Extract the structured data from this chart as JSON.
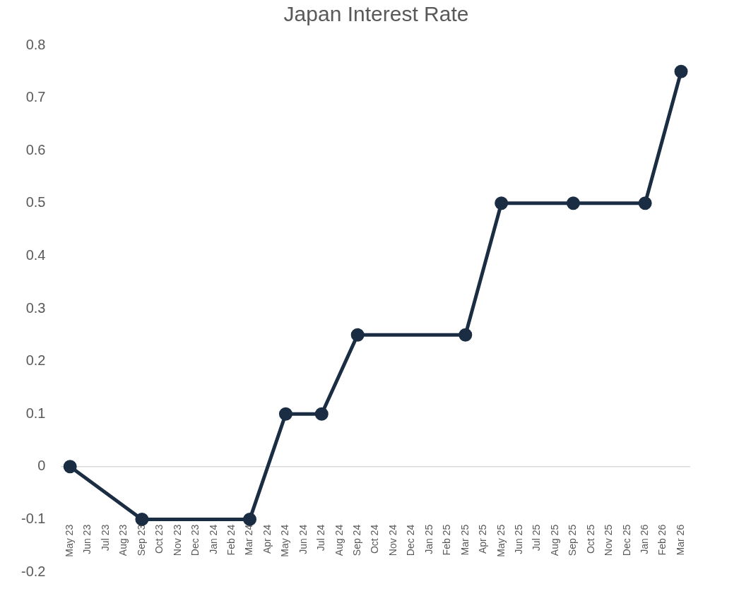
{
  "chart_data": {
    "type": "line",
    "title": "Japan Interest Rate",
    "categories": [
      "May 23",
      "Jun 23",
      "Jul 23",
      "Aug 23",
      "Sep 23",
      "Oct 23",
      "Nov 23",
      "Dec 23",
      "Jan 24",
      "Feb 24",
      "Mar 24",
      "Apr 24",
      "May 24",
      "Jun 24",
      "Jul 24",
      "Aug 24",
      "Sep 24",
      "Oct 24",
      "Nov 24",
      "Dec 24",
      "Jan 25",
      "Feb 25",
      "Mar 25",
      "Apr 25",
      "May 25",
      "Jun 25",
      "Jul 25",
      "Aug 25",
      "Sep 25",
      "Oct 25",
      "Nov 25",
      "Dec 25",
      "Jan 26",
      "Feb 26",
      "Mar 26"
    ],
    "series": [
      {
        "color": "#1b2d43",
        "values": [
          0,
          null,
          null,
          null,
          -0.1,
          null,
          null,
          null,
          null,
          null,
          -0.1,
          null,
          0.1,
          null,
          0.1,
          null,
          0.25,
          null,
          null,
          null,
          null,
          null,
          0.25,
          null,
          0.5,
          null,
          null,
          null,
          0.5,
          null,
          null,
          null,
          0.5,
          null,
          0.75
        ]
      }
    ],
    "ylim": [
      -0.2,
      0.8
    ],
    "yticks": [
      -0.2,
      -0.1,
      0,
      0.1,
      0.2,
      0.3,
      0.4,
      0.5,
      0.6,
      0.7,
      0.8
    ],
    "marker": "circle",
    "line_style": "solid"
  }
}
